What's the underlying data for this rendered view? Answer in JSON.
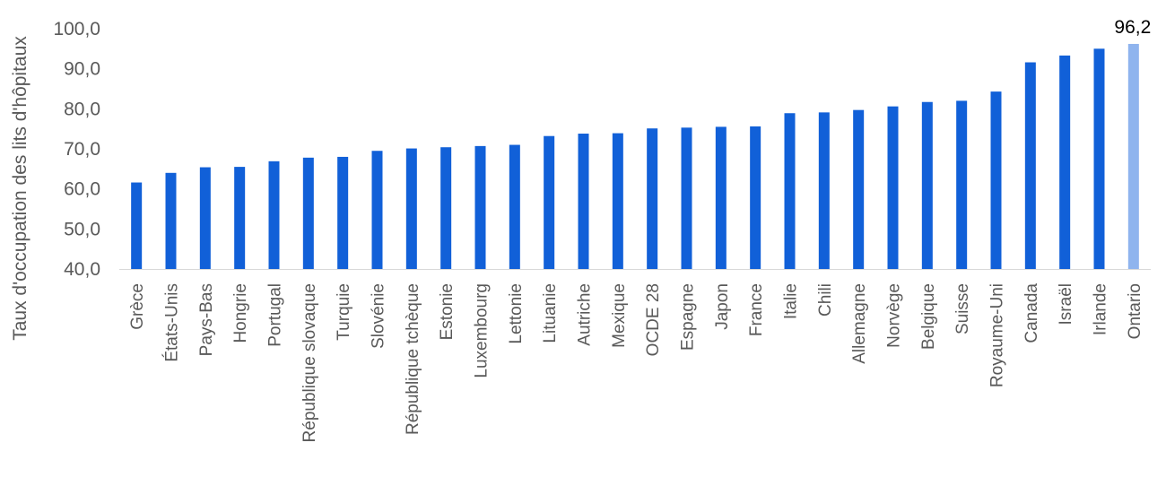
{
  "chart_data": {
    "type": "bar",
    "ylabel": "Taux d'occupation des lits d'hôpitaux",
    "ylim": [
      40,
      100
    ],
    "yticks": [
      40,
      50,
      60,
      70,
      80,
      90,
      100
    ],
    "ytick_labels": [
      "40,0",
      "50,0",
      "60,0",
      "70,0",
      "80,0",
      "90,0",
      "100,0"
    ],
    "grid": false,
    "categories": [
      "Grèce",
      "États-Unis",
      "Pays-Bas",
      "Hongrie",
      "Portugal",
      "République slovaque",
      "Turquie",
      "Slovénie",
      "République tchèque",
      "Estonie",
      "Luxembourg",
      "Lettonie",
      "Lituanie",
      "Autriche",
      "Mexique",
      "OCDE 28",
      "Espagne",
      "Japon",
      "France",
      "Italie",
      "Chili",
      "Allemagne",
      "Norvège",
      "Belgique",
      "Suisse",
      "Royaume-Uni",
      "Canada",
      "Israël",
      "Irlande",
      "Ontario"
    ],
    "values": [
      61.6,
      64.0,
      65.4,
      65.5,
      66.9,
      67.8,
      68.0,
      69.5,
      70.1,
      70.4,
      70.7,
      71.0,
      73.2,
      73.8,
      73.9,
      75.1,
      75.3,
      75.5,
      75.6,
      78.9,
      79.1,
      79.7,
      80.6,
      81.7,
      82.0,
      84.3,
      91.6,
      93.3,
      95.0,
      96.2
    ],
    "colors": {
      "default": "#1160D8",
      "highlight": "#8FB4EE"
    },
    "highlight_category": "Ontario",
    "data_labels": [
      {
        "category": "Ontario",
        "text": "96,2"
      }
    ]
  }
}
